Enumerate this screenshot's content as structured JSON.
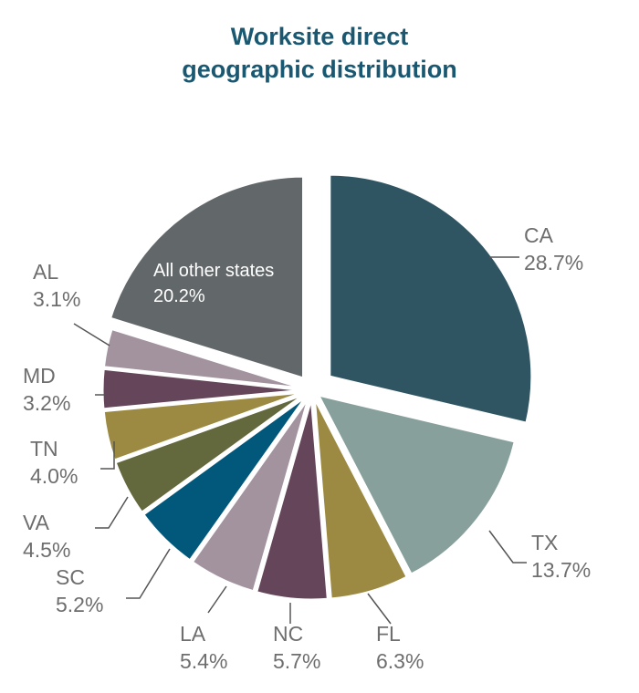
{
  "chart_data": {
    "type": "pie",
    "title_line1": "Worksite direct",
    "title_line2": "geographic distribution",
    "slices": [
      {
        "label": "CA",
        "value": 28.7,
        "value_label": "28.7%",
        "color": "#2f5563"
      },
      {
        "label": "TX",
        "value": 13.7,
        "value_label": "13.7%",
        "color": "#87a09c"
      },
      {
        "label": "FL",
        "value": 6.3,
        "value_label": "6.3%",
        "color": "#9c8a42"
      },
      {
        "label": "NC",
        "value": 5.7,
        "value_label": "5.7%",
        "color": "#65455a"
      },
      {
        "label": "LA",
        "value": 5.4,
        "value_label": "5.4%",
        "color": "#a2939f"
      },
      {
        "label": "SC",
        "value": 5.2,
        "value_label": "5.2%",
        "color": "#02587b"
      },
      {
        "label": "VA",
        "value": 4.5,
        "value_label": "4.5%",
        "color": "#63683d"
      },
      {
        "label": "TN",
        "value": 4.0,
        "value_label": "4.0%",
        "color": "#9c8a42"
      },
      {
        "label": "MD",
        "value": 3.2,
        "value_label": "3.2%",
        "color": "#65455a"
      },
      {
        "label": "AL",
        "value": 3.1,
        "value_label": "3.1%",
        "color": "#a2939f"
      },
      {
        "label": "All other states",
        "value": 20.2,
        "value_label": "20.2%",
        "color": "#62676a"
      }
    ]
  }
}
